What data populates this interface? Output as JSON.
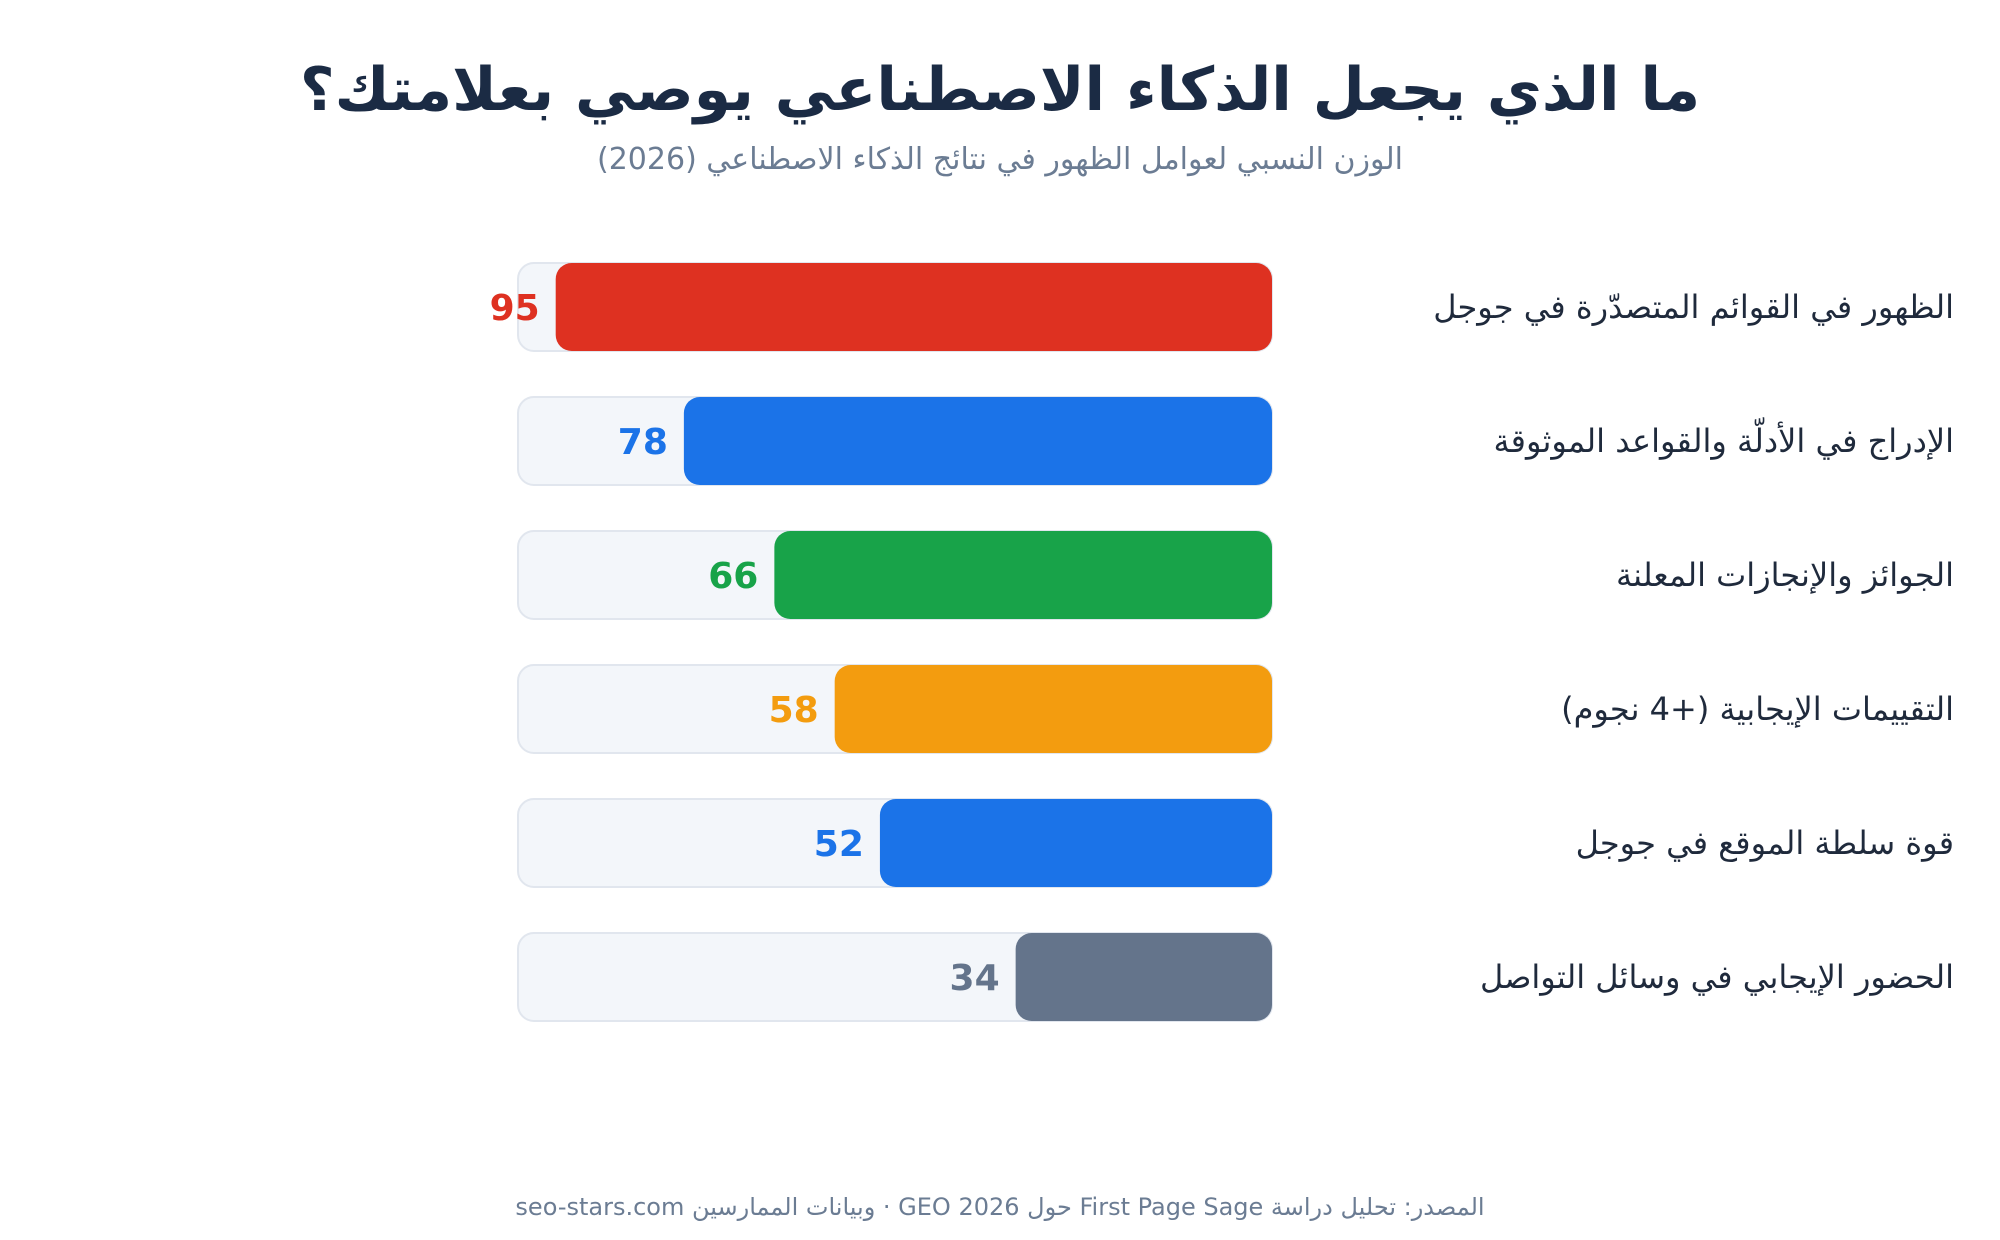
{
  "chart_data": {
    "type": "bar",
    "orientation": "horizontal",
    "title": "ما الذي يجعل الذكاء الاصطناعي يوصي بعلامتك؟",
    "subtitle": "الوزن النسبي لعوامل الظهور في نتائج الذكاء الاصطناعي (2026)",
    "xlim": [
      0,
      100
    ],
    "categories": [
      "الظهور في القوائم المتصدّرة في جوجل",
      "الإدراج في الأدلّة والقواعد الموثوقة",
      "الجوائز والإنجازات المعلنة",
      "التقييمات الإيجابية (+4 نجوم)",
      "قوة سلطة الموقع في جوجل",
      "الحضور الإيجابي في وسائل التواصل"
    ],
    "values": [
      95,
      78,
      66,
      58,
      52,
      34
    ],
    "colors": [
      "#de3121",
      "#1b73e8",
      "#18a349",
      "#f39c0f",
      "#1b73e8",
      "#64748b"
    ],
    "track_color": "#f3f6fa",
    "track_border": "#e1e6ee",
    "grid": false,
    "legend": "none",
    "source": "المصدر: تحليل دراسة First Page Sage حول GEO 2026 · وبيانات الممارسين seo-stars.com"
  }
}
